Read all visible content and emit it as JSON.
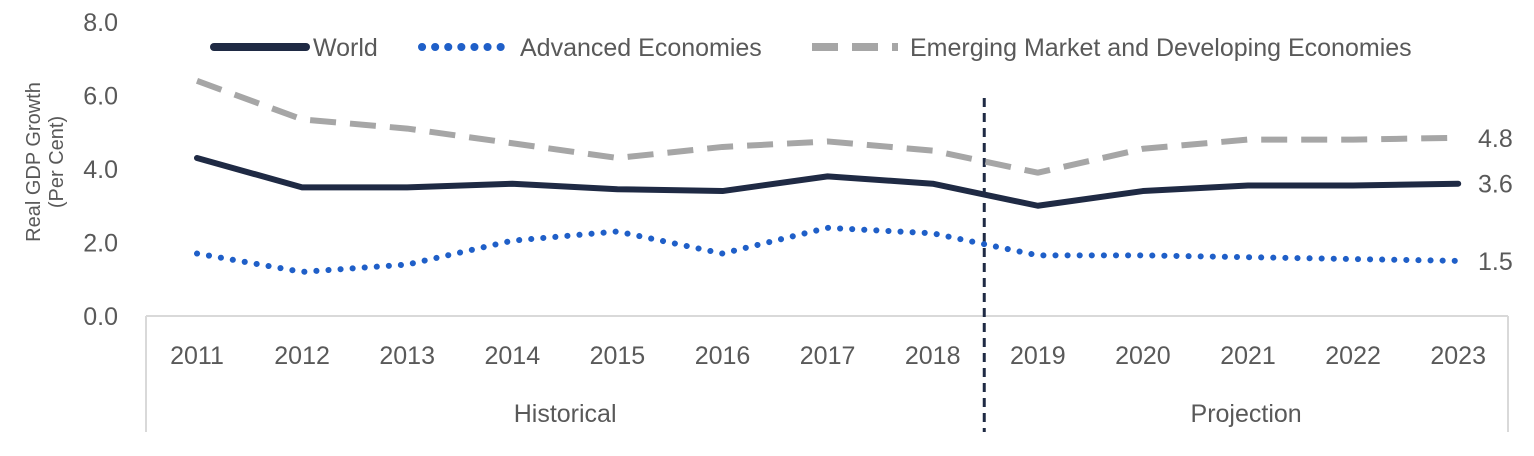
{
  "chart_data": {
    "type": "line",
    "title": "",
    "ylabel_line1": "Real GDP Growth",
    "ylabel_line2": "(Per Cent)",
    "xlabel": "",
    "ylim": [
      0,
      8
    ],
    "yticks": [
      "0.0",
      "2.0",
      "4.0",
      "6.0",
      "8.0"
    ],
    "categories": [
      "2011",
      "2012",
      "2013",
      "2014",
      "2015",
      "2016",
      "2017",
      "2018",
      "2019",
      "2020",
      "2021",
      "2022",
      "2023"
    ],
    "groups": [
      {
        "label": "Historical",
        "from": "2011",
        "to": "2018"
      },
      {
        "label": "Projection",
        "from": "2019",
        "to": "2023"
      }
    ],
    "legend_position": "top",
    "grid": false,
    "series": [
      {
        "name": "World",
        "style": "solid",
        "color": "#1f2a44",
        "values": [
          4.3,
          3.5,
          3.5,
          3.6,
          3.45,
          3.4,
          3.8,
          3.6,
          3.0,
          3.4,
          3.55,
          3.55,
          3.6
        ],
        "end_label": "3.6"
      },
      {
        "name": "Advanced Economies",
        "style": "dotted",
        "color": "#1f5fc8",
        "values": [
          1.7,
          1.2,
          1.4,
          2.05,
          2.3,
          1.7,
          2.4,
          2.25,
          1.65,
          1.65,
          1.6,
          1.55,
          1.5
        ],
        "end_label": "1.5"
      },
      {
        "name": "Emerging Market and Developing Economies",
        "style": "dashed",
        "color": "#a6a6a6",
        "values": [
          6.4,
          5.35,
          5.1,
          4.7,
          4.3,
          4.6,
          4.75,
          4.5,
          3.9,
          4.55,
          4.8,
          4.8,
          4.85
        ],
        "end_label": "4.8"
      }
    ]
  }
}
